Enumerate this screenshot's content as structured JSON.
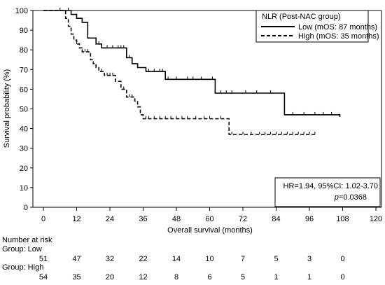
{
  "chart_data": {
    "type": "line",
    "subtype": "kaplan-meier",
    "xlabel": "Overall survival (months)",
    "ylabel": "Survival probability (%)",
    "xlim": [
      0,
      120
    ],
    "ylim": [
      0,
      100
    ],
    "xticks": [
      0,
      12,
      24,
      36,
      48,
      60,
      72,
      84,
      96,
      108,
      120
    ],
    "yticks": [
      0,
      10,
      20,
      30,
      40,
      50,
      60,
      70,
      80,
      90,
      100
    ],
    "grid": false,
    "legend": {
      "title": "NLR (Post-NAC group)",
      "placement": "top-right"
    },
    "series": [
      {
        "name": "Low (mOS: 87 months)",
        "line_style": "solid",
        "steps": [
          [
            0,
            100
          ],
          [
            8,
            100
          ],
          [
            10,
            98
          ],
          [
            12,
            96
          ],
          [
            14,
            94
          ],
          [
            16,
            86
          ],
          [
            19,
            83
          ],
          [
            21,
            81
          ],
          [
            30,
            76
          ],
          [
            32,
            73
          ],
          [
            34,
            71
          ],
          [
            37,
            69
          ],
          [
            44,
            65
          ],
          [
            62,
            58
          ],
          [
            87,
            47
          ],
          [
            107,
            46
          ]
        ],
        "censor_x": [
          6,
          9,
          20,
          23,
          25,
          27,
          28,
          29,
          31,
          38,
          40,
          42,
          43,
          45,
          48,
          52,
          54,
          57,
          61,
          64,
          66,
          68,
          73,
          77,
          82,
          90,
          94,
          98,
          101,
          104,
          107
        ]
      },
      {
        "name": "High (mOS: 35 months)",
        "line_style": "dashed",
        "steps": [
          [
            0,
            100
          ],
          [
            7,
            100
          ],
          [
            8,
            96
          ],
          [
            9,
            92
          ],
          [
            10,
            88
          ],
          [
            11,
            85
          ],
          [
            12,
            83
          ],
          [
            13,
            81
          ],
          [
            14,
            79
          ],
          [
            17,
            75
          ],
          [
            18,
            73
          ],
          [
            19,
            71
          ],
          [
            20,
            69
          ],
          [
            22,
            67
          ],
          [
            26,
            64
          ],
          [
            28,
            60
          ],
          [
            30,
            56
          ],
          [
            33,
            54
          ],
          [
            34,
            51
          ],
          [
            35,
            47
          ],
          [
            36,
            45
          ],
          [
            67,
            37
          ],
          [
            98,
            37
          ]
        ],
        "censor_x": [
          12,
          14,
          15,
          16,
          21,
          23,
          24,
          25,
          29,
          31,
          32,
          37,
          38,
          40,
          42,
          44,
          46,
          48,
          50,
          52,
          55,
          58,
          60,
          64,
          68,
          72,
          75,
          78,
          80,
          82,
          84,
          86,
          88,
          90,
          92,
          94,
          96,
          98
        ]
      }
    ],
    "annotation": {
      "hr_text": "HR=1.94, 95%CI: 1.02-3.70",
      "p_label": "p",
      "p_value": "=0.0368"
    },
    "risk_table": {
      "title": "Number at risk",
      "groups": [
        {
          "label": "Group: Low",
          "counts": [
            "51",
            "47",
            "32",
            "22",
            "14",
            "10",
            "7",
            "5",
            "3",
            "0"
          ]
        },
        {
          "label": "Group: High",
          "counts": [
            "54",
            "35",
            "20",
            "12",
            "8",
            "6",
            "5",
            "1",
            "1",
            "0"
          ]
        }
      ]
    }
  }
}
